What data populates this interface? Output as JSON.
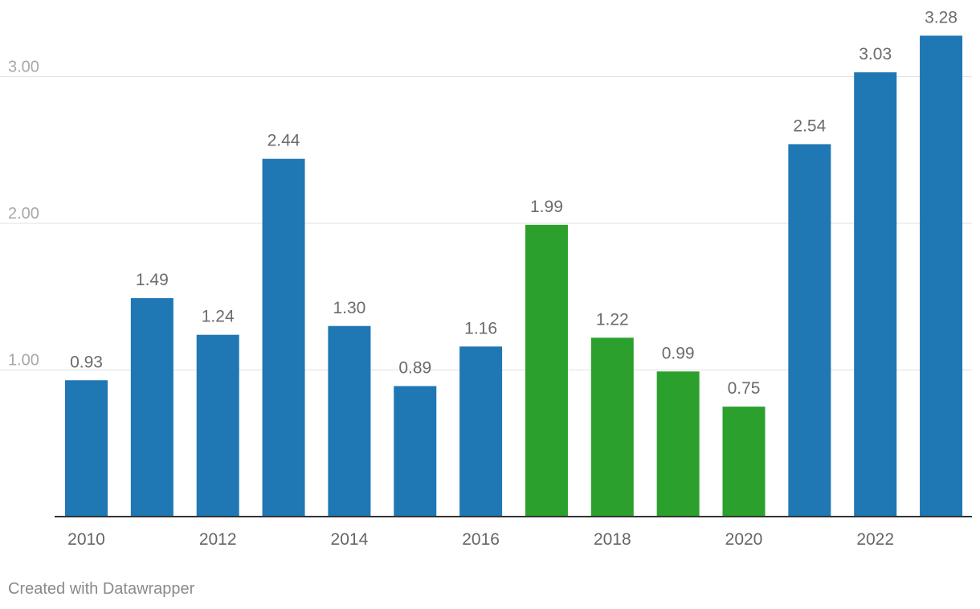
{
  "footer": {
    "credit": "Created with Datawrapper"
  },
  "colors": {
    "blue": "#1f77b4",
    "green": "#2ca02c",
    "grid": "#e0e0e0",
    "axis": "#333333",
    "y_tick_label": "#a8a8a8",
    "x_tick_label": "#666666",
    "value_label": "#6b6b6b"
  },
  "chart_data": {
    "type": "bar",
    "title": "",
    "xlabel": "",
    "ylabel": "",
    "ylim": [
      0,
      3.28
    ],
    "grid": true,
    "y_ticks": [
      1.0,
      2.0,
      3.0
    ],
    "y_tick_labels": [
      "1.00",
      "2.00",
      "3.00"
    ],
    "categories": [
      "2010",
      "2011",
      "2012",
      "2013",
      "2014",
      "2015",
      "2016",
      "2017",
      "2018",
      "2019",
      "2020",
      "2021",
      "2022",
      "2023"
    ],
    "x_tick_labels": [
      "2010",
      "",
      "2012",
      "",
      "2014",
      "",
      "2016",
      "",
      "2018",
      "",
      "2020",
      "",
      "2022",
      ""
    ],
    "values": [
      0.93,
      1.49,
      1.24,
      2.44,
      1.3,
      0.89,
      1.16,
      1.99,
      1.22,
      0.99,
      0.75,
      2.54,
      3.03,
      3.28
    ],
    "value_labels": [
      "0.93",
      "1.49",
      "1.24",
      "2.44",
      "1.30",
      "0.89",
      "1.16",
      "1.99",
      "1.22",
      "0.99",
      "0.75",
      "2.54",
      "3.03",
      "3.28"
    ],
    "bar_colors": [
      "#1f77b4",
      "#1f77b4",
      "#1f77b4",
      "#1f77b4",
      "#1f77b4",
      "#1f77b4",
      "#1f77b4",
      "#2ca02c",
      "#2ca02c",
      "#2ca02c",
      "#2ca02c",
      "#1f77b4",
      "#1f77b4",
      "#1f77b4"
    ]
  }
}
